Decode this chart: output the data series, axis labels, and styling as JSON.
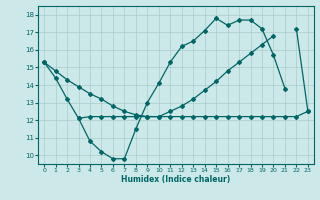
{
  "xlabel": "Humidex (Indice chaleur)",
  "bg_color": "#cce8e8",
  "grid_color": "#aacccc",
  "line_color": "#006666",
  "xlim": [
    -0.5,
    23.5
  ],
  "ylim": [
    9.5,
    18.5
  ],
  "xticks": [
    0,
    1,
    2,
    3,
    4,
    5,
    6,
    7,
    8,
    9,
    10,
    11,
    12,
    13,
    14,
    15,
    16,
    17,
    18,
    19,
    20,
    21,
    22,
    23
  ],
  "yticks": [
    10,
    11,
    12,
    13,
    14,
    15,
    16,
    17,
    18
  ],
  "line1_x": [
    0,
    1,
    2,
    3,
    4,
    5,
    6,
    7,
    8,
    9,
    10,
    11,
    12,
    13,
    14,
    15,
    16,
    17,
    18,
    19,
    20,
    21
  ],
  "line1_y": [
    15.3,
    14.4,
    13.2,
    12.1,
    10.8,
    10.2,
    9.8,
    9.8,
    11.5,
    13.0,
    14.1,
    15.3,
    16.2,
    16.5,
    17.1,
    17.8,
    17.4,
    17.7,
    17.7,
    17.2,
    15.7,
    13.8
  ],
  "line2_x": [
    0,
    1,
    2,
    3,
    4,
    5,
    6,
    7,
    8,
    9,
    10,
    11,
    12,
    13,
    14,
    15,
    16,
    17,
    18,
    19,
    20,
    22,
    23
  ],
  "line2_y": [
    15.3,
    14.8,
    14.3,
    13.9,
    13.5,
    13.2,
    12.8,
    12.5,
    12.3,
    12.2,
    12.2,
    12.5,
    12.8,
    13.2,
    13.7,
    14.2,
    14.8,
    15.3,
    15.8,
    16.3,
    16.8,
    17.2,
    12.5
  ],
  "line3_x": [
    3,
    4,
    5,
    6,
    7,
    8,
    9,
    10,
    11,
    12,
    13,
    14,
    15,
    16,
    17,
    18,
    19,
    20,
    21,
    22,
    23
  ],
  "line3_y": [
    12.1,
    12.2,
    12.2,
    12.2,
    12.2,
    12.2,
    12.2,
    12.2,
    12.2,
    12.2,
    12.2,
    12.2,
    12.2,
    12.2,
    12.2,
    12.2,
    12.2,
    12.2,
    12.2,
    12.2,
    12.5
  ]
}
